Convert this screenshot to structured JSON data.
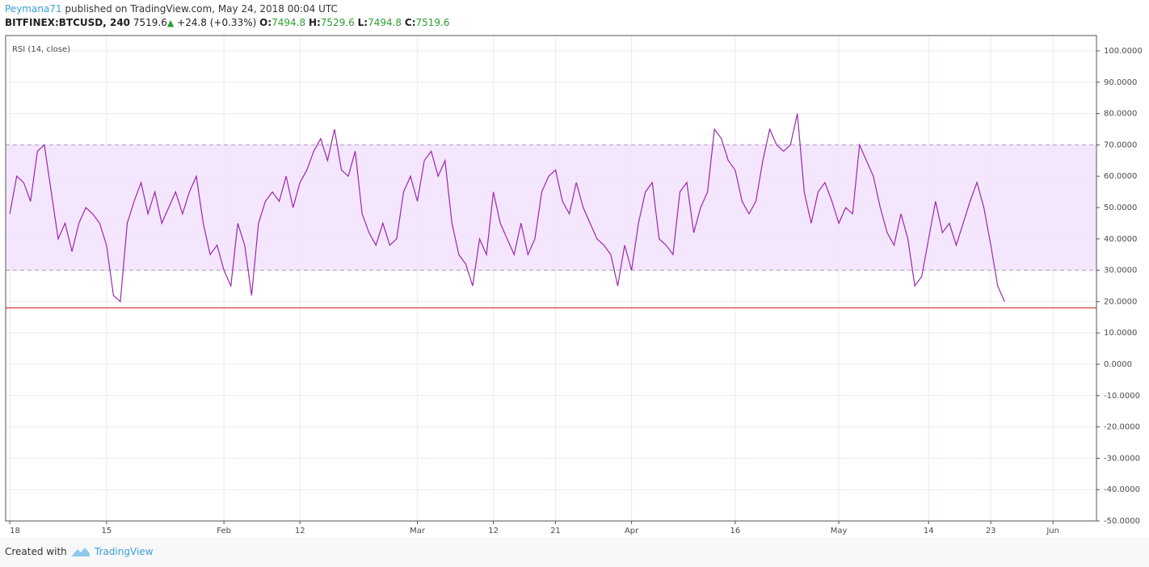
{
  "header": {
    "user": "Peymana71",
    "published": "published on TradingView.com, May 24, 2018 00:04 UTC",
    "symbol": "BITFINEX:BTCUSD, 240",
    "last": "7519.6",
    "change": "+24.8 (+0.33%)",
    "open_label": "O:",
    "open": "7494.8",
    "high_label": "H:",
    "high": "7529.6",
    "low_label": "L:",
    "low": "7494.8",
    "close_label": "C:",
    "close": "7519.6"
  },
  "footer": {
    "created": "Created with",
    "brand": "TradingView"
  },
  "chart_data": {
    "type": "line",
    "legend": "RSI (14, close)",
    "x": [
      0,
      1,
      2,
      3,
      4,
      5,
      6,
      7,
      8,
      9,
      10,
      11,
      12,
      13,
      14,
      15,
      16,
      17,
      18,
      19,
      20,
      21,
      22,
      23,
      24,
      25,
      26,
      27,
      28,
      29,
      30,
      31,
      32,
      33,
      34,
      35,
      36,
      37,
      38,
      39,
      40,
      41,
      42,
      43,
      44,
      45,
      46,
      47,
      48,
      49,
      50,
      51,
      52,
      53,
      54,
      55,
      56,
      57,
      58,
      59,
      60,
      61,
      62,
      63,
      64,
      65,
      66,
      67,
      68,
      69,
      70,
      71,
      72,
      73,
      74,
      75,
      76,
      77,
      78,
      79,
      80,
      81,
      82,
      83,
      84,
      85,
      86,
      87,
      88,
      89,
      90,
      91,
      92,
      93,
      94,
      95,
      96,
      97,
      98,
      99,
      100,
      101,
      102,
      103,
      104,
      105,
      106,
      107,
      108,
      109,
      110,
      111,
      112,
      113,
      114,
      115,
      116,
      117,
      118,
      119,
      120,
      121,
      122,
      123,
      124,
      125,
      126,
      127,
      128,
      129,
      130,
      131,
      132,
      133,
      134,
      135,
      136,
      137,
      138,
      139,
      140,
      141,
      142,
      143,
      144
    ],
    "series": [
      {
        "name": "RSI (14, close)",
        "color": "#9c27b0",
        "values": [
          48,
          60,
          58,
          52,
          68,
          70,
          55,
          40,
          45,
          36,
          45,
          50,
          48,
          45,
          38,
          22,
          20,
          45,
          52,
          58,
          48,
          55,
          45,
          50,
          55,
          48,
          55,
          60,
          45,
          35,
          38,
          30,
          25,
          45,
          38,
          22,
          45,
          52,
          55,
          52,
          60,
          50,
          58,
          62,
          68,
          72,
          65,
          75,
          62,
          60,
          68,
          48,
          42,
          38,
          45,
          38,
          40,
          55,
          60,
          52,
          65,
          68,
          60,
          65,
          45,
          35,
          32,
          25,
          40,
          35,
          55,
          45,
          40,
          35,
          45,
          35,
          40,
          55,
          60,
          62,
          52,
          48,
          58,
          50,
          45,
          40,
          38,
          35,
          25,
          38,
          30,
          45,
          55,
          58,
          40,
          38,
          35,
          55,
          58,
          42,
          50,
          55,
          75,
          72,
          65,
          62,
          52,
          48,
          52,
          65,
          75,
          70,
          68,
          70,
          80,
          55,
          45,
          55,
          58,
          52,
          45,
          50,
          48,
          70,
          65,
          60,
          50,
          42,
          38,
          48,
          40,
          25,
          28,
          40,
          52,
          42,
          45,
          38,
          45,
          52,
          58,
          50,
          38,
          25,
          20
        ]
      }
    ],
    "xlim": [
      -0.6,
      157.3
    ],
    "xticks": [
      {
        "value": 0,
        "label": "18"
      },
      {
        "value": 14,
        "label": "15"
      },
      {
        "value": 31,
        "label": "Feb"
      },
      {
        "value": 42,
        "label": "12"
      },
      {
        "value": 59,
        "label": "Mar"
      },
      {
        "value": 70,
        "label": "12"
      },
      {
        "value": 79,
        "label": "21"
      },
      {
        "value": 90,
        "label": "Apr"
      },
      {
        "value": 105,
        "label": "16"
      },
      {
        "value": 120,
        "label": "May"
      },
      {
        "value": 133,
        "label": "14"
      },
      {
        "value": 142,
        "label": "23"
      },
      {
        "value": 151,
        "label": "Jun"
      }
    ],
    "ylim": [
      -50,
      104.9
    ],
    "yticks": [
      {
        "value": -50,
        "label": "-50.0000"
      },
      {
        "value": -40,
        "label": "-40.0000"
      },
      {
        "value": -30,
        "label": "-30.0000"
      },
      {
        "value": -20,
        "label": "-20.0000"
      },
      {
        "value": -10,
        "label": "-10.0000"
      },
      {
        "value": 0,
        "label": "0.0000"
      },
      {
        "value": 10,
        "label": "10.0000"
      },
      {
        "value": 20,
        "label": "20.0000"
      },
      {
        "value": 30,
        "label": "30.0000"
      },
      {
        "value": 40,
        "label": "40.0000"
      },
      {
        "value": 50,
        "label": "50.0000"
      },
      {
        "value": 60,
        "label": "60.0000"
      },
      {
        "value": 70,
        "label": "70.0000"
      },
      {
        "value": 80,
        "label": "80.0000"
      },
      {
        "value": 90,
        "label": "90.0000"
      },
      {
        "value": 100,
        "label": "100.0000"
      }
    ],
    "grid": true,
    "band": [
      30,
      70
    ],
    "band_color": "#f3e3fc",
    "hline": 18,
    "hline_color": "#e05a5a"
  }
}
